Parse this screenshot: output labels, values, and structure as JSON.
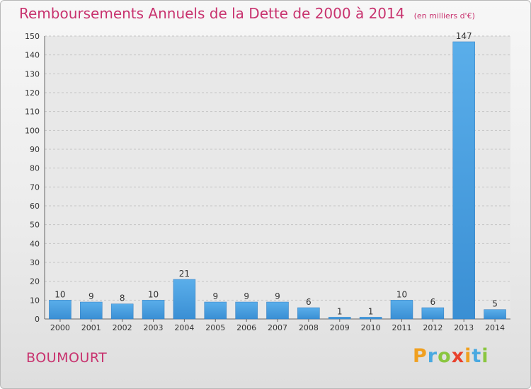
{
  "header": {
    "title": "Remboursements Annuels de la Dette de 2000 à 2014",
    "unit": "(en milliers d'€)"
  },
  "footer": {
    "commune": "BOUMOURT",
    "logo": "Proxiti"
  },
  "chart_data": {
    "type": "bar",
    "categories": [
      "2000",
      "2001",
      "2002",
      "2003",
      "2004",
      "2005",
      "2006",
      "2007",
      "2008",
      "2009",
      "2010",
      "2011",
      "2012",
      "2013",
      "2014"
    ],
    "values": [
      10,
      9,
      8,
      10,
      21,
      9,
      9,
      9,
      6,
      1,
      1,
      10,
      6,
      147,
      5
    ],
    "ylim": [
      0,
      150
    ],
    "yticks": [
      0,
      10,
      20,
      30,
      40,
      50,
      60,
      70,
      80,
      90,
      100,
      110,
      120,
      130,
      140,
      150
    ],
    "grid": true,
    "bar_color": "#3a8fd4",
    "title_color": "#c8326e"
  }
}
